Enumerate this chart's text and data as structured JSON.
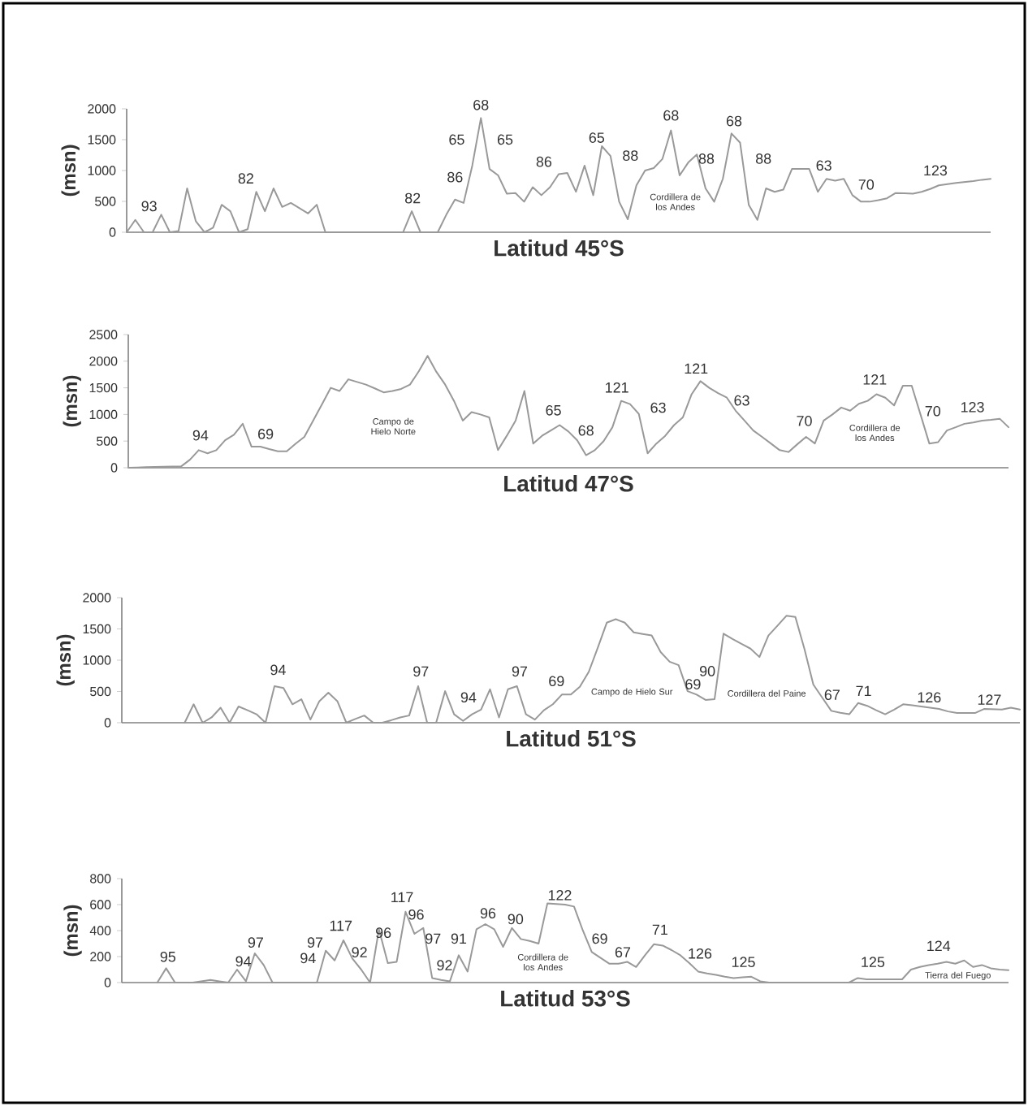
{
  "chart_data": [
    {
      "type": "line",
      "xlabel": "Latitud 45°S",
      "ylabel": "(msn)",
      "color": "#999999",
      "tick_labels": "y",
      "ylim": [
        0,
        2000
      ],
      "yticks": [
        0,
        500,
        1000,
        1500,
        2000
      ],
      "categories": [
        null,
        null,
        null,
        null,
        null,
        null,
        null,
        null,
        null,
        null,
        null,
        null,
        null,
        null,
        null,
        null,
        null,
        null,
        null,
        null,
        null,
        null,
        null,
        null,
        null,
        null,
        null,
        null,
        null,
        null,
        null,
        null,
        null,
        null,
        null,
        null,
        null,
        null,
        null,
        null,
        null,
        null,
        null,
        null,
        null,
        null,
        null,
        null,
        null,
        null,
        null,
        null,
        null,
        null,
        null,
        null,
        null,
        null,
        null,
        null,
        null,
        null,
        null,
        null,
        null,
        null,
        null,
        null,
        null,
        null,
        null,
        null,
        null,
        null,
        null,
        null,
        null,
        null,
        null,
        null,
        null,
        null,
        null,
        null,
        null,
        null,
        null,
        null,
        null,
        null,
        null,
        null,
        null,
        null,
        null,
        null,
        null,
        null,
        null,
        null,
        null
      ],
      "values": [
        0,
        200,
        0,
        0,
        285,
        0,
        20,
        710,
        180,
        0,
        75,
        445,
        340,
        0,
        50,
        655,
        340,
        710,
        410,
        475,
        390,
        305,
        445,
        0,
        0,
        0,
        0,
        0,
        0,
        0,
        0,
        0,
        0,
        340,
        0,
        0,
        0,
        285,
        530,
        475,
        1080,
        1850,
        1025,
        920,
        625,
        635,
        495,
        730,
        600,
        730,
        940,
        960,
        655,
        1080,
        600,
        1395,
        1235,
        495,
        210,
        760,
        1000,
        1040,
        1185,
        1650,
        920,
        1130,
        1260,
        710,
        495,
        865,
        1600,
        1450,
        445,
        200,
        710,
        655,
        690,
        1025,
        1025,
        1025,
        655,
        865,
        835,
        865,
        600,
        495,
        495,
        520,
        550,
        635,
        630,
        625,
        655,
        700,
        760,
        780,
        800,
        815,
        830,
        850,
        865
      ],
      "annotations": [
        "93",
        "82",
        "82",
        "86",
        "65",
        "68",
        "65",
        "86",
        "65",
        "88",
        "68",
        "88",
        "68",
        "88",
        "63",
        "70",
        "123",
        "Cordillera de los Andes"
      ]
    },
    {
      "type": "line",
      "xlabel": "Latitud 47°S",
      "ylabel": "(msn)",
      "color": "#999999",
      "tick_labels": "y",
      "ylim": [
        0,
        2500
      ],
      "yticks": [
        0,
        500,
        1000,
        1500,
        2000,
        2500
      ],
      "categories": [
        null,
        null,
        null,
        null,
        null,
        null,
        null,
        null,
        null,
        null,
        null,
        null,
        null,
        null,
        null,
        null,
        null,
        null,
        null,
        null,
        null,
        null,
        null,
        null,
        null,
        null,
        null,
        null,
        null,
        null,
        null,
        null,
        null,
        null,
        null,
        null,
        null,
        null,
        null,
        null,
        null,
        null,
        null,
        null,
        null,
        null,
        null,
        null,
        null,
        null,
        null,
        null,
        null,
        null,
        null,
        null,
        null,
        null,
        null,
        null,
        null,
        null,
        null,
        null,
        null,
        null,
        null,
        null,
        null,
        null,
        null,
        null,
        null,
        null,
        null,
        null,
        null,
        null,
        null,
        null,
        null,
        null,
        null,
        null,
        null,
        null,
        null,
        null,
        null,
        null,
        null,
        null,
        null,
        null,
        null,
        null,
        null,
        null,
        null,
        null,
        null
      ],
      "values": [
        0,
        5,
        10,
        15,
        20,
        22,
        25,
        150,
        330,
        270,
        330,
        515,
        620,
        825,
        395,
        395,
        350,
        310,
        310,
        450,
        580,
        885,
        1190,
        1500,
        1440,
        1660,
        1610,
        1560,
        1490,
        1415,
        1440,
        1480,
        1560,
        1810,
        2100,
        1800,
        1560,
        1255,
        885,
        1045,
        1000,
        945,
        330,
        600,
        885,
        1440,
        455,
        600,
        700,
        800,
        680,
        515,
        235,
        330,
        500,
        760,
        1255,
        1195,
        1010,
        270,
        455,
        600,
        800,
        945,
        1380,
        1625,
        1500,
        1400,
        1315,
        1070,
        885,
        700,
        580,
        455,
        330,
        295,
        440,
        580,
        455,
        885,
        1000,
        1130,
        1070,
        1200,
        1255,
        1380,
        1315,
        1170,
        1540,
        1540,
        1000,
        455,
        480,
        700,
        760,
        825,
        850,
        885,
        900,
        920,
        760
      ],
      "annotations": [
        "94",
        "69",
        "Campo de Hielo Norte",
        "65",
        "68",
        "121",
        "63",
        "121",
        "63",
        "70",
        "121",
        "Cordillera de los Andes",
        "70",
        "123"
      ]
    },
    {
      "type": "line",
      "xlabel": "Latitud 51°S",
      "ylabel": "(msn)",
      "color": "#999999",
      "tick_labels": "y",
      "ylim": [
        0,
        2000
      ],
      "yticks": [
        0,
        500,
        1000,
        1500,
        2000
      ],
      "categories": [
        null,
        null,
        null,
        null,
        null,
        null,
        null,
        null,
        null,
        null,
        null,
        null,
        null,
        null,
        null,
        null,
        null,
        null,
        null,
        null,
        null,
        null,
        null,
        null,
        null,
        null,
        null,
        null,
        null,
        null,
        null,
        null,
        null,
        null,
        null,
        null,
        null,
        null,
        null,
        null,
        null,
        null,
        null,
        null,
        null,
        null,
        null,
        null,
        null,
        null,
        null,
        null,
        null,
        null,
        null,
        null,
        null,
        null,
        null,
        null,
        null,
        null,
        null,
        null,
        null,
        null,
        null,
        null,
        null,
        null,
        null,
        null,
        null,
        null,
        null,
        null,
        null,
        null,
        null,
        null,
        null,
        null,
        null,
        null,
        null,
        null,
        null,
        null,
        null,
        null,
        null,
        null,
        null,
        null,
        null,
        null,
        null,
        null,
        null,
        null,
        null
      ],
      "values": [
        null,
        null,
        null,
        null,
        null,
        null,
        null,
        0,
        295,
        0,
        85,
        240,
        0,
        260,
        200,
        135,
        0,
        585,
        555,
        295,
        375,
        50,
        345,
        480,
        345,
        0,
        60,
        115,
        0,
        0,
        40,
        85,
        115,
        585,
        0,
        0,
        505,
        135,
        30,
        135,
        210,
        535,
        85,
        535,
        585,
        135,
        50,
        200,
        295,
        450,
        450,
        575,
        815,
        1200,
        1600,
        1655,
        1600,
        1445,
        1420,
        1395,
        1130,
        975,
        920,
        505,
        450,
        365,
        375,
        1425,
        1340,
        1260,
        1185,
        1050,
        1395,
        1550,
        1710,
        1690,
        1185,
        610,
        400,
        190,
        160,
        135,
        315,
        270,
        200,
        135,
        210,
        295,
        280,
        260,
        240,
        220,
        180,
        155,
        155,
        155,
        220,
        215,
        210,
        240,
        210
      ],
      "annotations": [
        "94",
        "97",
        "94",
        "97",
        "69",
        "Campo de Hielo Sur",
        "69",
        "90",
        "Cordillera del Paine",
        "67",
        "71",
        "126",
        "127"
      ]
    },
    {
      "type": "line",
      "xlabel": "Latitud 53°S",
      "ylabel": "(msn)",
      "color": "#999999",
      "tick_labels": "y",
      "ylim": [
        0,
        800
      ],
      "yticks": [
        0,
        200,
        400,
        600,
        800
      ],
      "categories": [
        null,
        null,
        null,
        null,
        null,
        null,
        null,
        null,
        null,
        null,
        null,
        null,
        null,
        null,
        null,
        null,
        null,
        null,
        null,
        null,
        null,
        null,
        null,
        null,
        null,
        null,
        null,
        null,
        null,
        null,
        null,
        null,
        null,
        null,
        null,
        null,
        null,
        null,
        null,
        null,
        null,
        null,
        null,
        null,
        null,
        null,
        null,
        null,
        null,
        null,
        null,
        null,
        null,
        null,
        null,
        null,
        null,
        null,
        null,
        null,
        null,
        null,
        null,
        null,
        null,
        null,
        null,
        null,
        null,
        null,
        null,
        null,
        null,
        null,
        null,
        null,
        null,
        null,
        null,
        null,
        null,
        null,
        null,
        null,
        null,
        null,
        null,
        null,
        null,
        null,
        null,
        null,
        null,
        null,
        null,
        null,
        null,
        null,
        null,
        null,
        null
      ],
      "values": [
        null,
        null,
        null,
        null,
        0,
        110,
        0,
        0,
        0,
        10,
        20,
        10,
        0,
        100,
        10,
        225,
        135,
        0,
        0,
        0,
        0,
        0,
        0,
        245,
        170,
        325,
        185,
        100,
        0,
        410,
        150,
        160,
        545,
        375,
        420,
        35,
        20,
        10,
        210,
        85,
        410,
        450,
        410,
        275,
        420,
        335,
        320,
        300,
        610,
        605,
        600,
        585,
        400,
        235,
        190,
        145,
        145,
        160,
        120,
        210,
        295,
        285,
        250,
        210,
        150,
        85,
        70,
        60,
        45,
        35,
        40,
        45,
        10,
        0,
        0,
        0,
        0,
        0,
        0,
        0,
        0,
        0,
        0,
        35,
        25,
        25,
        25,
        25,
        25,
        100,
        120,
        135,
        145,
        160,
        145,
        170,
        120,
        135,
        110,
        100,
        95
      ],
      "annotations": [
        "95",
        "94",
        "97",
        "94",
        "97",
        "117",
        "92",
        "96",
        "117",
        "96",
        "97",
        "92",
        "91",
        "96",
        "90",
        "Cordillera de los Andes",
        "122",
        "69",
        "67",
        "71",
        "126",
        "125",
        "125",
        "124",
        "Tierra del Fuego"
      ]
    }
  ]
}
